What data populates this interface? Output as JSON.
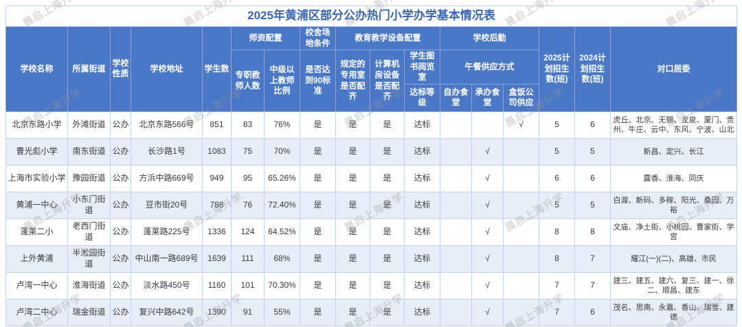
{
  "watermark_text": "晨启上海升学",
  "colors": {
    "header_bg": "#4a78c8",
    "row_alt_bg": "#e8eef8",
    "title_text": "#3565bb",
    "grid_line": "#c4d3ea",
    "header_grid_line": "#8aa6dd"
  },
  "chart_data": {
    "type": "table",
    "title": "2025年黄浦区部分公办热门小学办学基本情况表",
    "headers": {
      "school_name": "学校名称",
      "street": "所属街道",
      "nature": "学校性质",
      "address": "学校地址",
      "students": "学生数",
      "faculty_group": "师资配置",
      "full_time_teachers": "专职教师人数",
      "mid_level_ratio": "中级以上教师比例",
      "campus_group": "校舍场地条件",
      "meets_90_standard": "是否达到90标准",
      "equipment_group": "教育教学设备配置",
      "special_rooms": "规定的专用室是否配齐",
      "computer_room": "计算机房设备是否配齐",
      "library": "学生图书阅览室",
      "library_grade": "达标等级",
      "logistics_group": "学校后勤",
      "lunch_group": "午餐供应方式",
      "self_canteen": "自办食堂",
      "contracted_canteen": "承办食堂",
      "boxed_lunch": "盒饭公司供应",
      "plan_2025": "2025计划招生数(班)",
      "plan_2024": "2024计划招生数(班)",
      "community": "对口居委"
    },
    "checkmark": "√",
    "rows": [
      [
        "北京东路小学",
        "外滩街道",
        "公办",
        "北京东路566号",
        "851",
        "83",
        "76%",
        "是",
        "是",
        "是",
        "达标",
        "",
        "",
        "√",
        "5",
        "6",
        "虎丘、北京、无锡、龙泉、厦门、贵州、牛庄、云中、东风、宁波、山北"
      ],
      [
        "曹光彪小学",
        "南东街道",
        "公办",
        "长沙路1号",
        "1083",
        "75",
        "70%",
        "是",
        "是",
        "是",
        "达标",
        "",
        "√",
        "",
        "5",
        "5",
        "新昌、定兴、长江"
      ],
      [
        "上海市实验小学",
        "豫园街道",
        "公办",
        "方浜中路669号",
        "949",
        "95",
        "65.26%",
        "是",
        "是",
        "是",
        "达标",
        "",
        "√",
        "",
        "6",
        "6",
        "露香、淮海、同庆"
      ],
      [
        "黄浦一中心",
        "小东门街道",
        "公办",
        "豆市街20号",
        "788",
        "76",
        "72.40%",
        "是",
        "是",
        "是",
        "达标",
        "",
        "√",
        "",
        "5",
        "5",
        "白渡、新码、多稼、阳光、桑园、万裕"
      ],
      [
        "蓬莱二小",
        "老西门街道",
        "公办",
        "蓬莱路225号",
        "1336",
        "124",
        "64.52%",
        "是",
        "是",
        "是",
        "达标",
        "",
        "√",
        "",
        "8",
        "8",
        "文庙、净土街、小桃园、曹家街、学宫"
      ],
      [
        "上外黄浦",
        "半淞园街道",
        "公办",
        "中山南一路689号",
        "1639",
        "111",
        "68%",
        "是",
        "是",
        "是",
        "达标",
        "",
        "√",
        "",
        "8",
        "7",
        "耀江(一)(二)、高雄、市民"
      ],
      [
        "卢湾一中心",
        "淮海街道",
        "公办",
        "淡水路450号",
        "1160",
        "101",
        "70.30%",
        "是",
        "是",
        "是",
        "达标",
        "",
        "√",
        "",
        "7",
        "7",
        "建三、建五、建六、复三、建一、徐二、顺昌、建东"
      ],
      [
        "卢湾二中心",
        "瑞金街道",
        "公办",
        "复兴中路642号",
        "1390",
        "91",
        "55%",
        "是",
        "是",
        "是",
        "达标",
        "",
        "√",
        "",
        "7",
        "6",
        "茂名、思南、永嘉、香山、瑞雪、建德"
      ]
    ]
  }
}
